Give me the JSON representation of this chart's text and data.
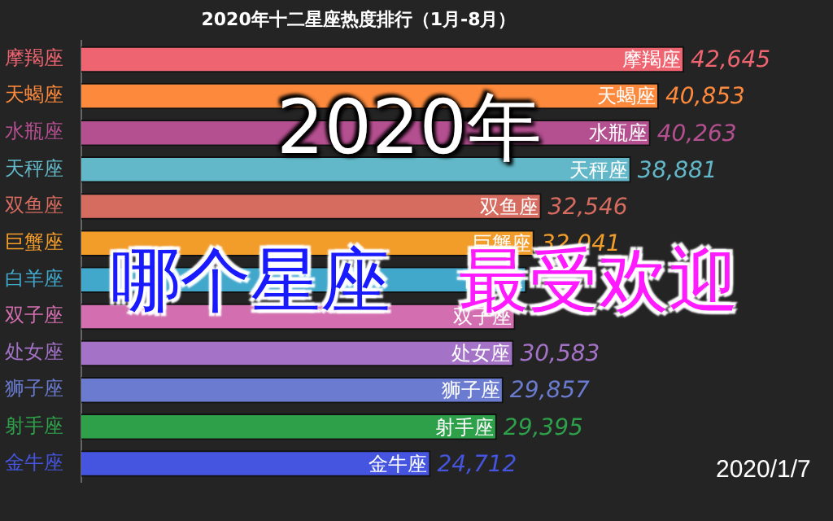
{
  "chart_data": {
    "type": "bar",
    "orientation": "horizontal",
    "title": "2020年十二星座热度排行（1月-8月）",
    "categories": [
      "摩羯座",
      "天蝎座",
      "水瓶座",
      "天秤座",
      "双鱼座",
      "巨蟹座",
      "白羊座",
      "双子座",
      "处女座",
      "狮子座",
      "射手座",
      "金牛座"
    ],
    "values": [
      42645,
      40853,
      40263,
      38881,
      32546,
      32041,
      31500,
      30700,
      30583,
      29857,
      29395,
      24712
    ],
    "value_labels": [
      "42,645",
      "40,853",
      "40,263",
      "38,881",
      "32,546",
      "32,041",
      null,
      null,
      "30,583",
      "29,857",
      "29,395",
      "24,712"
    ],
    "colors": [
      "#ee6470",
      "#fd8a3c",
      "#b44f90",
      "#62b8c8",
      "#d66b5f",
      "#f29c2a",
      "#41a8cc",
      "#d36fb0",
      "#a473c8",
      "#6a7bd0",
      "#2ea04a",
      "#4555e0"
    ],
    "tick_labels": "y",
    "annotations": [
      "2020年",
      "哪个星座",
      "最受欢迎",
      "2020/1/7"
    ]
  }
}
